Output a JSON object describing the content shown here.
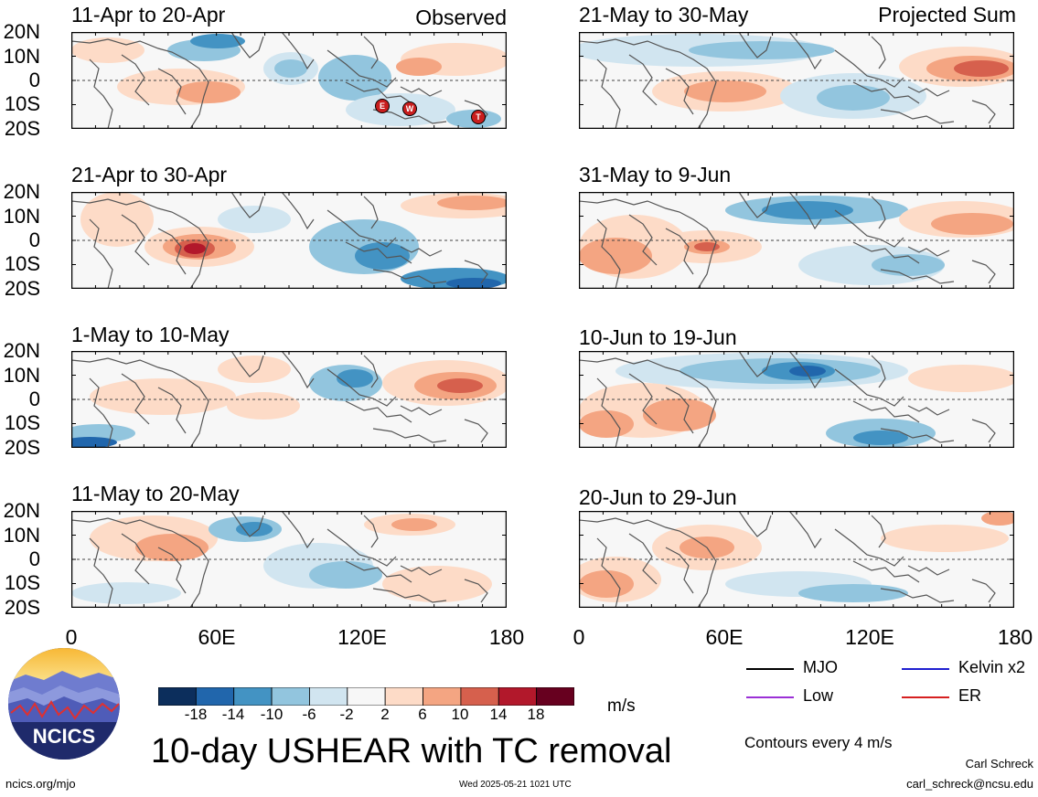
{
  "header": {
    "observed_label": "Observed",
    "projected_label": "Projected Sum"
  },
  "panels": [
    {
      "title": "11-Apr to 20-Apr",
      "column": "left",
      "row": 0
    },
    {
      "title": "21-Apr to 30-Apr",
      "column": "left",
      "row": 1
    },
    {
      "title": "1-May to 10-May",
      "column": "left",
      "row": 2
    },
    {
      "title": "11-May to 20-May",
      "column": "left",
      "row": 3
    },
    {
      "title": "21-May to 30-May",
      "column": "right",
      "row": 0
    },
    {
      "title": "31-May to 9-Jun",
      "column": "right",
      "row": 1
    },
    {
      "title": "10-Jun to 19-Jun",
      "column": "right",
      "row": 2
    },
    {
      "title": "20-Jun to 29-Jun",
      "column": "right",
      "row": 3
    }
  ],
  "lat_labels": [
    "20N",
    "10N",
    "0",
    "10S",
    "20S"
  ],
  "lon_labels": [
    "0",
    "60E",
    "120E",
    "180"
  ],
  "tc_markers": [
    "E",
    "W",
    "T"
  ],
  "colorbar": {
    "ticks": [
      "-18",
      "-14",
      "-10",
      "-6",
      "-2",
      "2",
      "6",
      "10",
      "14",
      "18"
    ],
    "colors": [
      "#0c2e5c",
      "#2166ac",
      "#4393c3",
      "#92c5de",
      "#d1e5f0",
      "#f7f7f7",
      "#fddbc7",
      "#f4a582",
      "#d6604d",
      "#b2182b",
      "#67001f"
    ],
    "unit": "m/s"
  },
  "legend": {
    "items": [
      {
        "label": "MJO",
        "color": "#000000"
      },
      {
        "label": "Kelvin x2",
        "color": "#1f1fd0"
      },
      {
        "label": "Low",
        "color": "#9b30d6"
      },
      {
        "label": "ER",
        "color": "#d62020"
      }
    ],
    "contour_note": "Contours every 4 m/s"
  },
  "logo": {
    "text": "NCICS"
  },
  "footer": {
    "title": "10-day USHEAR with TC removal",
    "url": "ncics.org/mjo",
    "timestamp": "Wed 2025-05-21 1021 UTC",
    "author": "Carl Schreck",
    "email": "carl_schreck@ncsu.edu"
  }
}
